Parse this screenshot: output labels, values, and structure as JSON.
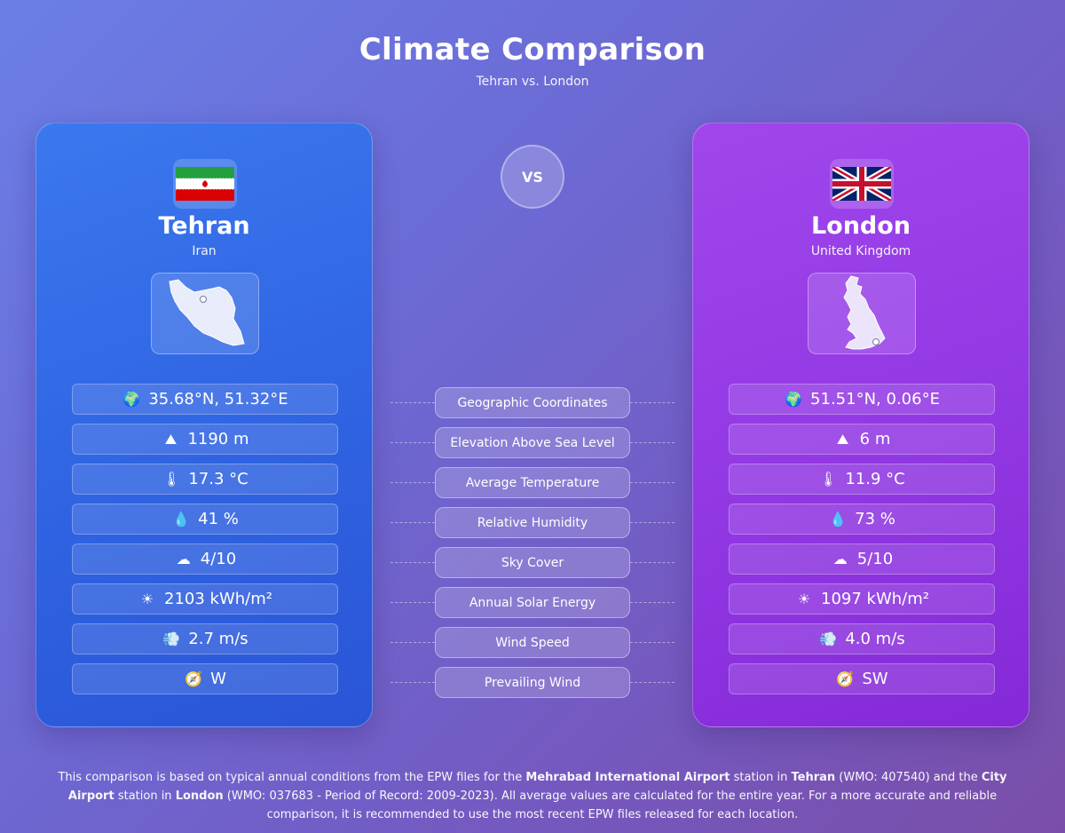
{
  "header": {
    "title": "Climate Comparison",
    "subtitle": "Tehran vs. London"
  },
  "vs_label": "VS",
  "left": {
    "city": "Tehran",
    "country": "Iran",
    "flag": "iran-flag",
    "map": "iran-map",
    "stats": [
      {
        "icon": "🌍",
        "icon_name": "globe-icon",
        "value": "35.68°N, 51.32°E"
      },
      {
        "icon": "⛰",
        "icon_name": "mountain-icon",
        "value": "1190 m"
      },
      {
        "icon": "🌡",
        "icon_name": "thermometer-icon",
        "value": "17.3 °C"
      },
      {
        "icon": "💧",
        "icon_name": "droplet-icon",
        "value": "41 %"
      },
      {
        "icon": "☁",
        "icon_name": "cloud-icon",
        "value": "4/10"
      },
      {
        "icon": "☀",
        "icon_name": "sun-icon",
        "value": "2103 kWh/m²"
      },
      {
        "icon": "💨",
        "icon_name": "wind-icon",
        "value": "2.7 m/s"
      },
      {
        "icon": "🧭",
        "icon_name": "compass-icon",
        "value": "W"
      }
    ]
  },
  "right": {
    "city": "London",
    "country": "United Kingdom",
    "flag": "uk-flag",
    "map": "uk-map",
    "stats": [
      {
        "icon": "🌍",
        "icon_name": "globe-icon",
        "value": "51.51°N, 0.06°E"
      },
      {
        "icon": "⛰",
        "icon_name": "mountain-icon",
        "value": "6 m"
      },
      {
        "icon": "🌡",
        "icon_name": "thermometer-icon",
        "value": "11.9 °C"
      },
      {
        "icon": "💧",
        "icon_name": "droplet-icon",
        "value": "73 %"
      },
      {
        "icon": "☁",
        "icon_name": "cloud-icon",
        "value": "5/10"
      },
      {
        "icon": "☀",
        "icon_name": "sun-icon",
        "value": "1097 kWh/m²"
      },
      {
        "icon": "💨",
        "icon_name": "wind-icon",
        "value": "4.0 m/s"
      },
      {
        "icon": "🧭",
        "icon_name": "compass-icon",
        "value": "SW"
      }
    ]
  },
  "metrics": [
    "Geographic Coordinates",
    "Elevation Above Sea Level",
    "Average Temperature",
    "Relative Humidity",
    "Sky Cover",
    "Annual Solar Energy",
    "Wind Speed",
    "Prevailing Wind"
  ],
  "footer": {
    "t1": "This comparison is based on typical annual conditions from the EPW files for the ",
    "b1": "Mehrabad International Airport",
    "t2": " station in ",
    "b2": "Tehran",
    "t3": " (WMO: 407540) and the ",
    "b3": "City Airport",
    "t4": " station in ",
    "b4": "London",
    "t5": " (WMO: 037683 - Period of Record: 2009-2023). All average values are calculated for the entire year. For a more accurate and reliable comparison, it is recommended to use the most recent EPW files released for each location."
  },
  "colors": {
    "left_card": "#2f63e2",
    "right_card": "#9138e3",
    "background": "#6c6bd6"
  }
}
